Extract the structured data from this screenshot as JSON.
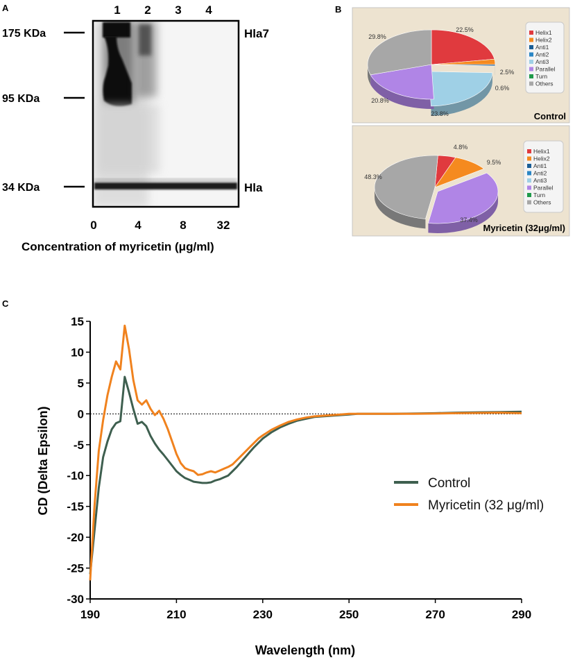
{
  "panel_a": {
    "letter": "A",
    "lane_numbers": [
      "1",
      "2",
      "3",
      "4"
    ],
    "markers": [
      "175 KDa",
      "95 KDa",
      "34 KDa"
    ],
    "band_labels": [
      "Hla7",
      "Hla"
    ],
    "concentrations": [
      "0",
      "4",
      "8",
      "32"
    ],
    "xlabel": "Concentration of myricetin (μg/ml)"
  },
  "panel_b": {
    "letter": "B",
    "legend": [
      "Helix1",
      "Helix2",
      "Anti1",
      "Anti2",
      "Anti3",
      "Parallel",
      "Turn",
      "Others"
    ],
    "colors": {
      "Helix1": "#e03a3e",
      "Helix2": "#f58a1f",
      "Anti1": "#1a5e96",
      "Anti2": "#2a86c5",
      "Anti3": "#9fd0e6",
      "Parallel": "#b085e6",
      "Turn": "#1f9a4a",
      "Others": "#a7a7a7",
      "panel_bg": "#ede3d0",
      "legend_bg": "#f4f4f4"
    },
    "pies": [
      {
        "title": "Control",
        "slices": [
          {
            "name": "Helix1",
            "value": 22.5,
            "label": "22.5%"
          },
          {
            "name": "Helix2",
            "value": 2.5,
            "label": "2.5%"
          },
          {
            "name": "Anti1",
            "value": 0.6,
            "label": "0.6%"
          },
          {
            "name": "Anti3",
            "value": 23.8,
            "label": "23.8%"
          },
          {
            "name": "Parallel",
            "value": 20.8,
            "label": "20.8%"
          },
          {
            "name": "Others",
            "value": 29.8,
            "label": "29.8%"
          }
        ]
      },
      {
        "title": "Myricetin (32μg/ml)",
        "slices": [
          {
            "name": "Helix1",
            "value": 4.8,
            "label": "4.8%"
          },
          {
            "name": "Helix2",
            "value": 9.5,
            "label": "9.5%"
          },
          {
            "name": "Parallel",
            "value": 37.4,
            "label": "37.4%"
          },
          {
            "name": "Others",
            "value": 48.3,
            "label": "48.3%"
          }
        ]
      }
    ]
  },
  "chart_data": {
    "type": "line",
    "panel_letter": "C",
    "title": "",
    "xlabel": "Wavelength (nm)",
    "ylabel": "CD (Delta Epsilon)",
    "xlim": [
      190,
      290
    ],
    "ylim": [
      -30,
      15
    ],
    "xticks": [
      190,
      210,
      230,
      250,
      270,
      290
    ],
    "yticks": [
      15,
      10,
      5,
      0,
      -5,
      -10,
      -15,
      -20,
      -25,
      -30
    ],
    "zero_line": "dotted",
    "legend_position": "right",
    "series": [
      {
        "name": "Control",
        "color": "#3e5f4f",
        "points": [
          [
            190,
            -26
          ],
          [
            191,
            -19
          ],
          [
            192,
            -12
          ],
          [
            193,
            -7
          ],
          [
            194,
            -4.5
          ],
          [
            195,
            -2.5
          ],
          [
            196,
            -1.5
          ],
          [
            197,
            -1.2
          ],
          [
            198,
            6
          ],
          [
            199,
            3.5
          ],
          [
            200,
            0.8
          ],
          [
            201,
            -1.6
          ],
          [
            202,
            -1.3
          ],
          [
            203,
            -2
          ],
          [
            204,
            -3.6
          ],
          [
            205,
            -4.8
          ],
          [
            206,
            -5.8
          ],
          [
            207,
            -6.6
          ],
          [
            208,
            -7.5
          ],
          [
            209,
            -8.4
          ],
          [
            210,
            -9.3
          ],
          [
            211,
            -9.9
          ],
          [
            212,
            -10.4
          ],
          [
            213,
            -10.7
          ],
          [
            214,
            -11
          ],
          [
            215,
            -11.1
          ],
          [
            216,
            -11.2
          ],
          [
            217,
            -11.2
          ],
          [
            218,
            -11.1
          ],
          [
            219,
            -10.8
          ],
          [
            220,
            -10.6
          ],
          [
            221,
            -10.3
          ],
          [
            222,
            -10
          ],
          [
            223,
            -9.3
          ],
          [
            224,
            -8.6
          ],
          [
            225,
            -7.8
          ],
          [
            226,
            -7
          ],
          [
            227,
            -6.2
          ],
          [
            228,
            -5.4
          ],
          [
            229,
            -4.7
          ],
          [
            230,
            -4
          ],
          [
            232,
            -3
          ],
          [
            234,
            -2.2
          ],
          [
            236,
            -1.6
          ],
          [
            238,
            -1.1
          ],
          [
            240,
            -0.8
          ],
          [
            242,
            -0.5
          ],
          [
            244,
            -0.4
          ],
          [
            246,
            -0.3
          ],
          [
            248,
            -0.2
          ],
          [
            250,
            -0.1
          ],
          [
            252,
            0
          ],
          [
            255,
            0
          ],
          [
            260,
            0
          ],
          [
            265,
            0.05
          ],
          [
            270,
            0.1
          ],
          [
            275,
            0.2
          ],
          [
            280,
            0.25
          ],
          [
            285,
            0.3
          ],
          [
            290,
            0.35
          ]
        ]
      },
      {
        "name": "Myricetin (32 μg/ml)",
        "color": "#f0821e",
        "points": [
          [
            190,
            -27
          ],
          [
            191,
            -15
          ],
          [
            192,
            -6
          ],
          [
            193,
            -1
          ],
          [
            194,
            3
          ],
          [
            195,
            6
          ],
          [
            196,
            8.5
          ],
          [
            197,
            7.2
          ],
          [
            198,
            14.3
          ],
          [
            199,
            10.5
          ],
          [
            200,
            5.5
          ],
          [
            201,
            2.2
          ],
          [
            202,
            1.5
          ],
          [
            203,
            2.2
          ],
          [
            204,
            0.8
          ],
          [
            205,
            -0.2
          ],
          [
            206,
            0.5
          ],
          [
            207,
            -0.8
          ],
          [
            208,
            -2.5
          ],
          [
            209,
            -4.5
          ],
          [
            210,
            -6.5
          ],
          [
            211,
            -8
          ],
          [
            212,
            -8.8
          ],
          [
            213,
            -9.1
          ],
          [
            214,
            -9.3
          ],
          [
            215,
            -9.9
          ],
          [
            216,
            -9.8
          ],
          [
            217,
            -9.5
          ],
          [
            218,
            -9.3
          ],
          [
            219,
            -9.5
          ],
          [
            220,
            -9.2
          ],
          [
            221,
            -8.9
          ],
          [
            222,
            -8.6
          ],
          [
            223,
            -8.2
          ],
          [
            224,
            -7.5
          ],
          [
            225,
            -6.8
          ],
          [
            226,
            -6.1
          ],
          [
            227,
            -5.4
          ],
          [
            228,
            -4.7
          ],
          [
            229,
            -4
          ],
          [
            230,
            -3.5
          ],
          [
            232,
            -2.6
          ],
          [
            234,
            -1.9
          ],
          [
            236,
            -1.3
          ],
          [
            238,
            -0.9
          ],
          [
            240,
            -0.6
          ],
          [
            242,
            -0.4
          ],
          [
            244,
            -0.3
          ],
          [
            246,
            -0.2
          ],
          [
            248,
            -0.1
          ],
          [
            250,
            0
          ],
          [
            255,
            0
          ],
          [
            260,
            0
          ],
          [
            265,
            0
          ],
          [
            270,
            0.05
          ],
          [
            275,
            0.1
          ],
          [
            280,
            0.15
          ],
          [
            285,
            0.2
          ],
          [
            290,
            0.1
          ]
        ]
      }
    ]
  }
}
